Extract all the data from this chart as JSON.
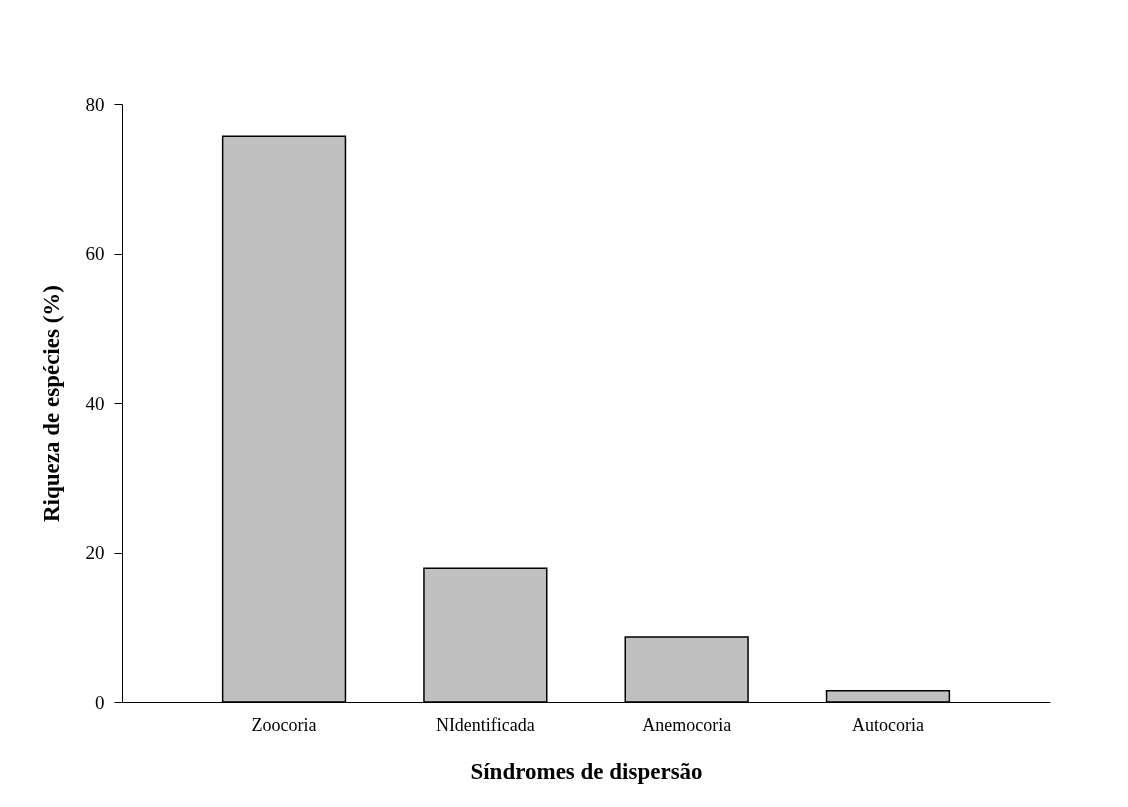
{
  "chart_data": {
    "type": "bar",
    "xlabel": "Síndromes de dispersão",
    "ylabel": "Riqueza de espécies (%)",
    "categories": [
      "Zoocoria",
      "NIdentificada",
      "Anemocoria",
      "Autocoria"
    ],
    "values": [
      75.7,
      17.9,
      8.7,
      1.5
    ],
    "color": "#c0c0c0",
    "ylim": [
      0,
      80
    ],
    "yticks": [
      0,
      20,
      40,
      60,
      80
    ],
    "grid": false
  }
}
